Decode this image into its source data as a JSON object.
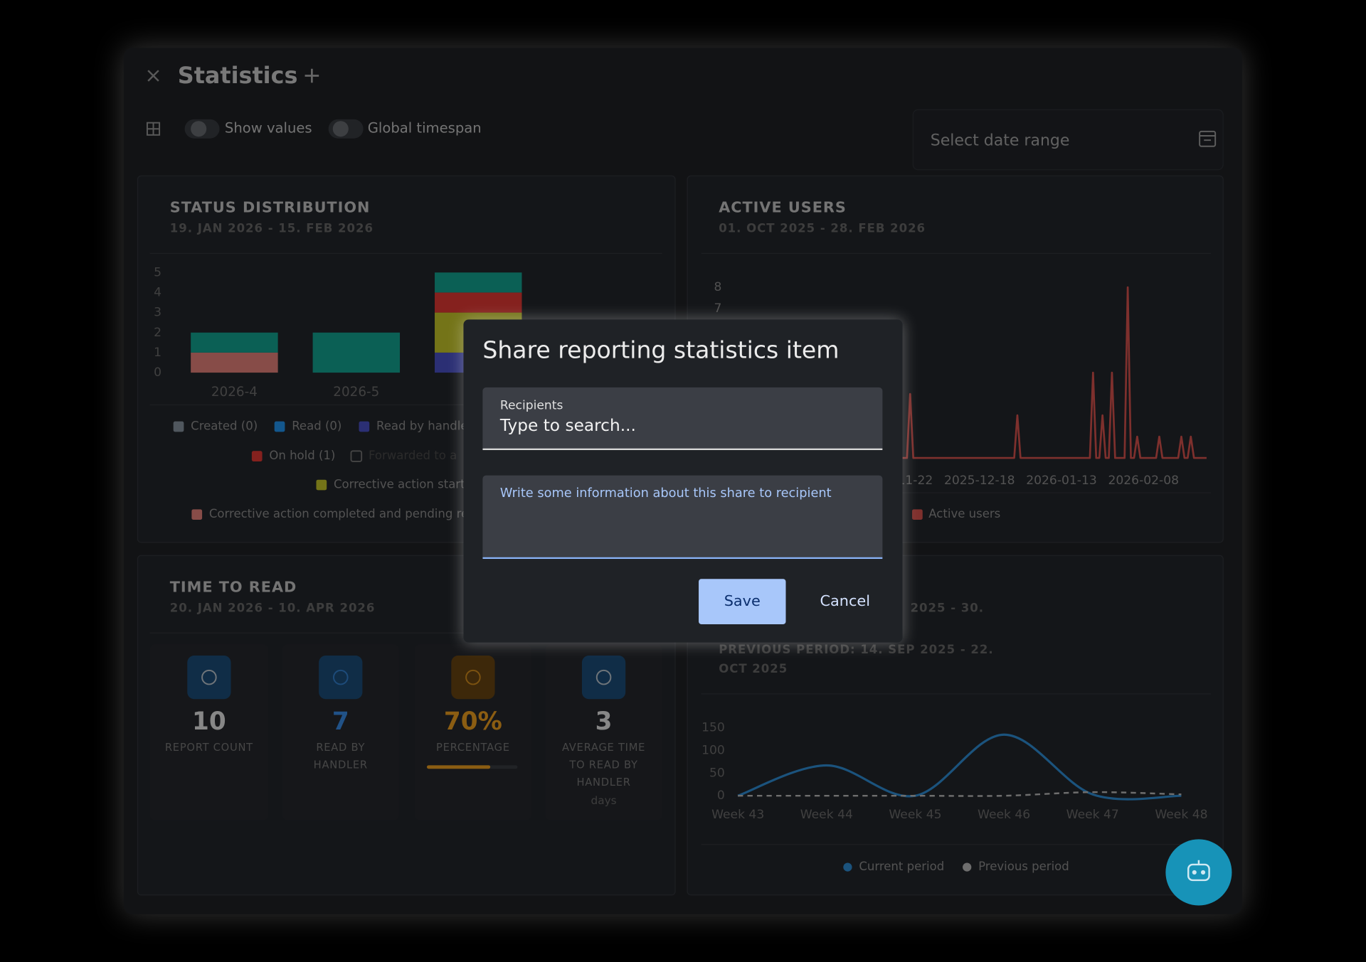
{
  "header": {
    "title": "Statistics",
    "show_values": "Show values",
    "global_timespan": "Global timespan",
    "date_range": "Select date range"
  },
  "chart_data": [
    {
      "type": "bar",
      "title": "STATUS DISTRIBUTION",
      "subtitle": "19. JAN 2026 - 15. FEB 2026",
      "categories": [
        "2026-4",
        "2026-5",
        null
      ],
      "ylim": [
        0,
        5
      ],
      "yticks": [
        0,
        1,
        2,
        3,
        4,
        5
      ],
      "stacked": true,
      "series": [
        {
          "name": "Created (0)",
          "color": "#8a96a3",
          "values": [
            0,
            0,
            0
          ]
        },
        {
          "name": "Read (0)",
          "color": "#2196f3",
          "values": [
            0,
            0,
            0
          ]
        },
        {
          "name": "Corrective action completed and pending re",
          "color": "#e8837c",
          "values": [
            1,
            0,
            0
          ]
        },
        {
          "name": "Read by handle",
          "color": "#4b52c8",
          "values": [
            0,
            0,
            1
          ]
        },
        {
          "name": "Corrective action start",
          "color": "#c9c82a",
          "values": [
            0,
            0,
            2
          ]
        },
        {
          "name": "On hold (1)",
          "color": "#e53935",
          "values": [
            0,
            0,
            1
          ]
        },
        {
          "name": "Forwarded to a",
          "color": "#777777",
          "values": [
            0,
            0,
            0
          ],
          "hidden": true
        },
        {
          "name": null,
          "color": "#14a593",
          "values": [
            1,
            2,
            1
          ]
        }
      ]
    },
    {
      "type": "line",
      "title": "ACTIVE USERS",
      "subtitle": "01. OCT 2025 - 28. FEB 2026",
      "x": [
        "2025-10-01",
        "2025-11-25",
        "2025-11-26",
        "2025-11-27",
        "2025-12-29",
        "2025-12-30",
        "2025-12-31",
        "2026-01-22",
        "2026-01-23",
        "2026-01-24",
        "2026-01-25",
        "2026-01-26",
        "2026-01-27",
        "2026-01-28",
        "2026-01-29",
        "2026-01-30",
        "2026-02-02",
        "2026-02-03",
        "2026-02-04",
        "2026-02-05",
        "2026-02-06",
        "2026-02-07",
        "2026-02-12",
        "2026-02-13",
        "2026-02-14",
        "2026-02-19",
        "2026-02-20",
        "2026-02-21",
        "2026-02-22",
        "2026-02-23",
        "2026-02-24",
        "2026-02-28"
      ],
      "xlim": [
        "2025-10-01",
        "2026-02-28"
      ],
      "xticks": [
        "2025-11-22",
        "2025-12-18",
        "2026-01-13",
        "2026-02-08"
      ],
      "ylim": [
        0,
        8
      ],
      "yticks": [
        0,
        1,
        2,
        3,
        4,
        5,
        6,
        7,
        8
      ],
      "series": [
        {
          "name": "Active users",
          "color": "#d9534f",
          "values": [
            0,
            0,
            3,
            0,
            0,
            2,
            0,
            0,
            4,
            0,
            0,
            2,
            0,
            0,
            4,
            0,
            0,
            8,
            0,
            0,
            1,
            0,
            0,
            1,
            0,
            0,
            1,
            0,
            0,
            1,
            0,
            0
          ]
        }
      ]
    },
    {
      "type": "line",
      "subtitle": [
        "2025 - 30.",
        "PREVIOUS PERIOD: 14. SEP 2025 - 22.",
        "OCT 2025"
      ],
      "categories": [
        "Week 43",
        "Week 44",
        "Week 45",
        "Week 46",
        "Week 47",
        "Week 48"
      ],
      "ylim": [
        0,
        150
      ],
      "yticks": [
        0,
        50,
        100,
        150
      ],
      "smooth": true,
      "series": [
        {
          "name": "Current period",
          "color": "#2f8fd8",
          "line_style": "solid",
          "values": [
            0,
            67,
            0,
            135,
            3,
            0
          ]
        },
        {
          "name": "Previous period",
          "color": "#bdbdbd",
          "line_style": "dashed",
          "values": [
            0,
            0,
            0,
            0,
            8,
            3
          ]
        }
      ]
    }
  ],
  "time_to_read": {
    "title": "TIME TO READ",
    "period": "20. JAN 2026 - 10. APR 2026",
    "tiles": [
      {
        "value": 10,
        "label": [
          "REPORT COUNT"
        ],
        "color": "#e8e8e8",
        "icon_color": "#1d4f7a"
      },
      {
        "value": 7,
        "label": [
          "READ BY",
          "HANDLER"
        ],
        "color": "#3a8ee8",
        "icon_color": "#1d4f7a"
      },
      {
        "value": "70%",
        "label": [
          "PERCENTAGE"
        ],
        "color": "#f0a020",
        "icon_color": "#6a4512",
        "progress": 70
      },
      {
        "value": 3,
        "label": [
          "AVERAGE TIME",
          "TO READ BY",
          "HANDLER"
        ],
        "unit": "days",
        "color": "#e8e8e8",
        "icon_color": "#1d4f7a"
      }
    ]
  },
  "dialog": {
    "title": "Share reporting statistics item",
    "recipients_label": "Recipients",
    "recipients_placeholder": "Type to search...",
    "message_placeholder": "Write some information about this share to recipient",
    "save": "Save",
    "cancel": "Cancel"
  }
}
